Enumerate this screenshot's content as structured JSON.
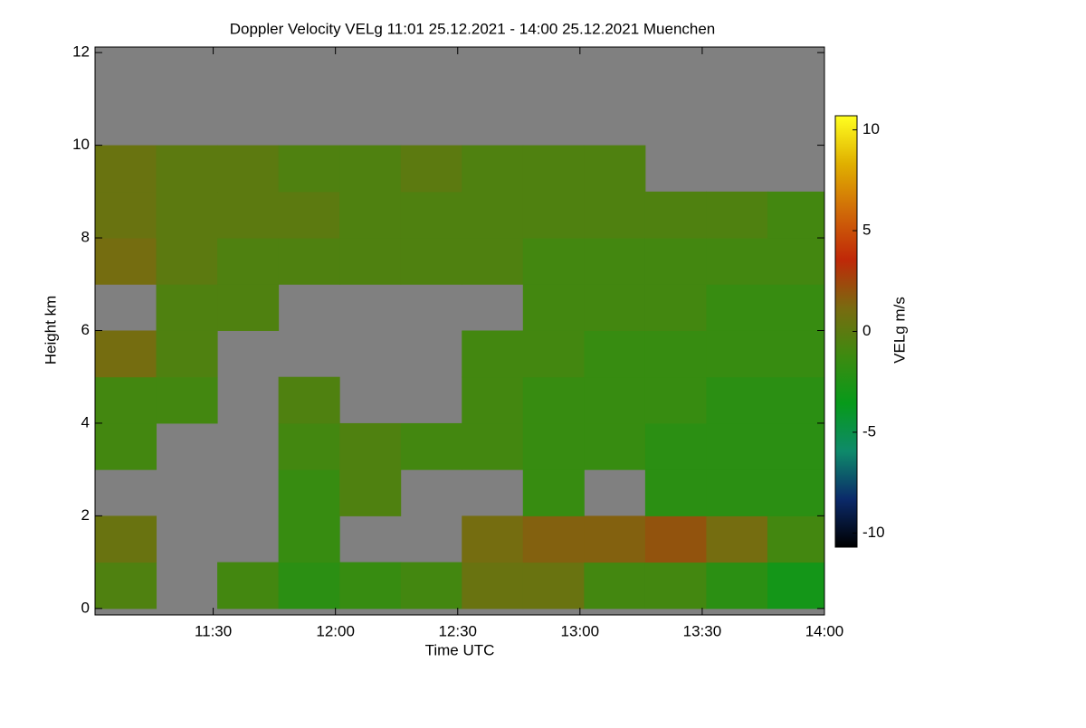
{
  "chart_data": {
    "type": "heatmap",
    "title": "Doppler Velocity VELg   11:01 25.12.2021 - 14:00 25.12.2021 Muenchen",
    "xlabel": "Time UTC",
    "ylabel": "Height km",
    "colorbar_label": "VELg m/s",
    "xbins": [
      661,
      676,
      691,
      706,
      721,
      736,
      751,
      766,
      781,
      796,
      811,
      826,
      840
    ],
    "ybins": [
      0,
      1,
      2,
      3,
      4,
      5,
      6,
      7,
      8,
      9,
      10,
      11,
      12
    ],
    "z": [
      [
        -0.5,
        null,
        -1,
        -2,
        -1.5,
        -1,
        0.5,
        0.5,
        -1,
        -1,
        -2,
        -3
      ],
      [
        0.5,
        null,
        null,
        -1.5,
        null,
        null,
        1,
        1.5,
        1.5,
        2,
        1,
        -1
      ],
      [
        null,
        null,
        null,
        -1.5,
        -0.5,
        null,
        null,
        -1.5,
        null,
        -2,
        -2,
        -2
      ],
      [
        -1,
        null,
        null,
        -1,
        -0.5,
        -1,
        -1,
        -1.5,
        -1.5,
        -2,
        -2,
        -2
      ],
      [
        -1,
        -1,
        null,
        -0.5,
        null,
        null,
        -1,
        -1.5,
        -1.5,
        -1.5,
        -2,
        -2
      ],
      [
        1,
        -0.5,
        null,
        null,
        null,
        null,
        -1,
        -1,
        -1.5,
        -1.5,
        -1.5,
        -1.5
      ],
      [
        null,
        -0.5,
        -0.5,
        null,
        null,
        null,
        null,
        -1,
        -1,
        -1,
        -1.5,
        -1.5
      ],
      [
        1,
        0,
        -0.5,
        -0.5,
        -0.5,
        -0.5,
        -0.5,
        -1,
        -1,
        -1,
        -1,
        -1
      ],
      [
        0.5,
        0,
        0,
        0,
        -0.5,
        -0.5,
        -0.5,
        -0.5,
        -0.5,
        -0.5,
        -0.5,
        -1
      ],
      [
        0.5,
        0,
        0,
        -0.5,
        -0.5,
        0,
        -0.5,
        -0.5,
        -0.5,
        null,
        null,
        null
      ],
      [
        null,
        null,
        null,
        null,
        null,
        null,
        null,
        null,
        null,
        null,
        null,
        null
      ],
      [
        null,
        null,
        null,
        null,
        null,
        null,
        null,
        null,
        null,
        null,
        null,
        null
      ]
    ],
    "xlim": [
      661,
      840
    ],
    "ylim": [
      -0.14,
      12.12
    ],
    "zlim": [
      -10.7,
      10.7
    ],
    "xticks": [
      {
        "value": 690,
        "label": "11:30"
      },
      {
        "value": 720,
        "label": "12:00"
      },
      {
        "value": 750,
        "label": "12:30"
      },
      {
        "value": 780,
        "label": "13:00"
      },
      {
        "value": 810,
        "label": "13:30"
      },
      {
        "value": 840,
        "label": "14:00"
      }
    ],
    "yticks": [
      0,
      2,
      4,
      6,
      8,
      10,
      12
    ],
    "zticks": [
      -10,
      -5,
      0,
      5,
      10
    ],
    "colors": [
      "#000000",
      "#0b2a6a",
      "#0e8a6a",
      "#079a1a",
      "#3e8a10",
      "#7a6a10",
      "#c02808",
      "#d06a08",
      "#e0b000",
      "#ffff20"
    ],
    "missing_color": "#808080"
  }
}
